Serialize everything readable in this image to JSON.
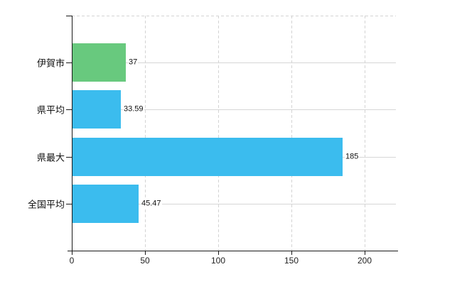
{
  "chart_data": {
    "type": "bar",
    "orientation": "horizontal",
    "categories": [
      "伊賀市",
      "県平均",
      "県最大",
      "全国平均"
    ],
    "values": [
      37,
      33.59,
      185,
      45.47
    ],
    "value_labels": [
      "37",
      "33.59",
      "185",
      "45.47"
    ],
    "bar_colors": [
      "#68c97e",
      "#3bbcee",
      "#3bbcee",
      "#3bbcee"
    ],
    "x_ticks": [
      0,
      50,
      100,
      150,
      200
    ],
    "x_tick_labels": [
      "0",
      "50",
      "100",
      "150",
      "200"
    ],
    "xlim": [
      0,
      221.4
    ],
    "grid": true,
    "legend": "none",
    "title": ""
  },
  "colors": {
    "background": "#ffffff",
    "axis": "#1a1a1a",
    "gridline": "#d6d6d6",
    "text": "#111111",
    "green_bar": "#68c97e",
    "blue_bar": "#3bbcee"
  }
}
